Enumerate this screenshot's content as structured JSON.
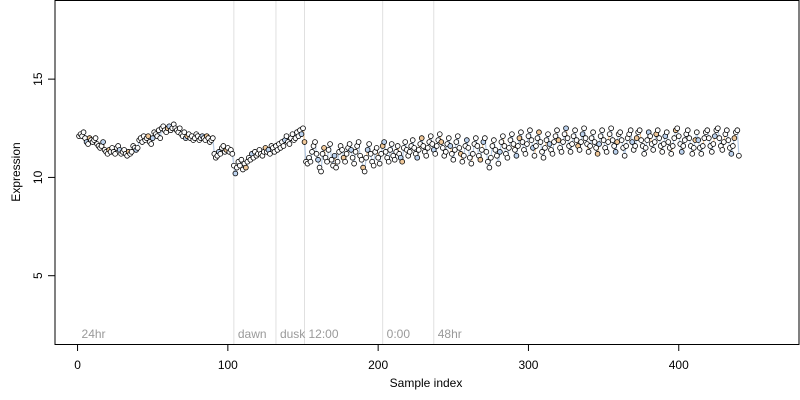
{
  "chart_data": {
    "type": "scatter",
    "xlabel": "Sample index",
    "ylabel": "Expression",
    "xlim": [
      -15,
      480
    ],
    "ylim": [
      1.5,
      19
    ],
    "x_ticks": [
      0,
      100,
      200,
      300,
      400
    ],
    "y_ticks": [
      5,
      10,
      15
    ],
    "grid": false,
    "legend": "none",
    "annotations": [
      {
        "label": "24hr",
        "x": 0
      },
      {
        "label": "dawn",
        "x": 104
      },
      {
        "label": "dusk",
        "x": 132
      },
      {
        "label": "12:00",
        "x": 151
      },
      {
        "label": "0:00",
        "x": 203
      },
      {
        "label": "48hr",
        "x": 237
      }
    ],
    "colors": {
      "marker_fill": "#ffffff",
      "marker_fill_alt_blue": "#bcd2ee",
      "marker_fill_alt_orange": "#f1c99a",
      "marker_edge": "#000000",
      "connector_line": "#b7cbe3",
      "connector_line_alt": "#f1c99a",
      "annotation_line": "#e0e0e0",
      "annotation_text": "#9a9a9a"
    },
    "series": [
      {
        "x_start": 1,
        "x_step": 1,
        "values": [
          12.1,
          12.2,
          12.1,
          12.3,
          12.0,
          11.8,
          11.7,
          12.0,
          11.9,
          11.8,
          11.9,
          12.0,
          11.7,
          11.6,
          11.5,
          11.6,
          11.8,
          11.4,
          11.3,
          11.2,
          11.4,
          11.3,
          11.5,
          11.3,
          11.2,
          11.5,
          11.6,
          11.4,
          11.2,
          11.3,
          11.4,
          11.2,
          11.1,
          11.3,
          11.2,
          11.3,
          11.6,
          11.5,
          11.4,
          11.5,
          11.9,
          12.0,
          11.8,
          12.1,
          11.9,
          12.0,
          12.1,
          11.8,
          11.7,
          12.0,
          12.3,
          12.2,
          12.1,
          12.4,
          12.0,
          12.5,
          12.6,
          12.4,
          12.3,
          12.5,
          12.6,
          12.4,
          12.5,
          12.7,
          12.5,
          12.4,
          12.3,
          12.5,
          12.2,
          12.1,
          12.3,
          12.0,
          12.1,
          12.2,
          12.0,
          12.1,
          11.9,
          12.0,
          12.2,
          12.1,
          11.9,
          12.0,
          12.1,
          12.0,
          11.9,
          12.1,
          12.0,
          11.8,
          11.9,
          12.0,
          11.2,
          11.0,
          11.1,
          11.3,
          11.2,
          11.5,
          11.6,
          11.3,
          11.4,
          11.5,
          11.3,
          11.4,
          11.2,
          10.6,
          10.2,
          10.5,
          10.8,
          10.6,
          10.9,
          10.4,
          10.7,
          10.5,
          10.8,
          11.0,
          10.9,
          11.2,
          11.0,
          11.3,
          11.1,
          11.2,
          11.4,
          11.2,
          11.1,
          11.3,
          11.5,
          11.3,
          11.4,
          11.2,
          11.6,
          11.5,
          11.3,
          11.6,
          11.4,
          11.7,
          11.5,
          11.8,
          11.6,
          11.9,
          12.1,
          11.8,
          11.7,
          12.0,
          12.2,
          11.9,
          12.0,
          12.3,
          12.1,
          12.4,
          12.2,
          12.5,
          11.8,
          10.8,
          10.7,
          11.0,
          10.8,
          11.3,
          11.6,
          11.8,
          11.2,
          10.9,
          10.5,
          10.3,
          11.2,
          11.5,
          11.0,
          10.8,
          11.4,
          11.7,
          10.9,
          10.6,
          11.1,
          10.5,
          10.8,
          11.3,
          11.6,
          11.4,
          11.0,
          10.8,
          11.2,
          11.5,
          11.7,
          11.4,
          11.0,
          10.7,
          11.3,
          11.6,
          11.8,
          11.1,
          10.9,
          10.5,
          10.3,
          11.0,
          11.4,
          11.7,
          11.2,
          10.8,
          10.6,
          11.3,
          11.5,
          11.0,
          10.7,
          11.2,
          11.6,
          11.8,
          11.3,
          11.0,
          10.8,
          11.4,
          11.7,
          11.1,
          10.9,
          11.3,
          11.6,
          11.2,
          11.0,
          10.8,
          11.5,
          11.8,
          11.4,
          11.1,
          11.3,
          11.6,
          11.9,
          11.5,
          11.2,
          11.0,
          11.4,
          11.7,
          12.0,
          11.6,
          11.3,
          11.1,
          11.5,
          11.8,
          12.1,
          11.7,
          11.4,
          11.2,
          11.6,
          11.9,
          12.2,
          11.8,
          11.5,
          11.1,
          11.3,
          11.7,
          12.0,
          11.6,
          11.2,
          10.9,
          11.4,
          11.8,
          12.1,
          11.5,
          11.2,
          10.8,
          11.1,
          11.6,
          11.9,
          11.5,
          11.0,
          10.7,
          11.2,
          11.7,
          12.0,
          11.6,
          11.1,
          10.9,
          11.4,
          11.8,
          12.0,
          11.3,
          10.8,
          10.5,
          11.0,
          11.6,
          11.9,
          11.4,
          11.1,
          10.7,
          11.3,
          11.8,
          12.1,
          11.6,
          11.2,
          11.0,
          11.5,
          11.9,
          12.2,
          11.7,
          11.4,
          11.1,
          11.6,
          12.0,
          12.3,
          11.8,
          11.4,
          11.2,
          11.7,
          12.1,
          12.4,
          11.9,
          11.5,
          11.1,
          11.6,
          12.0,
          12.3,
          11.8,
          11.3,
          11.0,
          11.5,
          11.9,
          12.2,
          11.7,
          11.4,
          11.2,
          11.8,
          12.1,
          12.4,
          11.9,
          11.5,
          11.3,
          11.8,
          12.2,
          12.5,
          12.0,
          11.6,
          11.3,
          11.7,
          12.1,
          12.4,
          11.9,
          11.6,
          11.4,
          11.8,
          12.2,
          12.5,
          12.0,
          11.7,
          11.3,
          11.6,
          12.0,
          12.3,
          11.8,
          11.5,
          11.2,
          11.7,
          12.1,
          12.4,
          11.9,
          11.5,
          11.3,
          11.8,
          12.2,
          12.5,
          11.9,
          11.6,
          11.3,
          11.8,
          12.2,
          12.3,
          11.9,
          11.5,
          11.1,
          11.6,
          12.0,
          12.2,
          12.4,
          11.8,
          11.4,
          11.6,
          12.0,
          12.3,
          12.4,
          11.9,
          11.6,
          11.2,
          11.5,
          11.9,
          12.3,
          12.1,
          11.7,
          11.4,
          11.8,
          12.2,
          12.4,
          12.0,
          11.6,
          11.3,
          11.7,
          12.1,
          12.3,
          11.8,
          11.5,
          11.2,
          11.6,
          12.0,
          12.4,
          12.5,
          12.1,
          11.7,
          11.3,
          11.6,
          11.9,
          12.2,
          12.4,
          12.0,
          11.6,
          11.2,
          11.5,
          11.9,
          12.3,
          11.9,
          11.5,
          11.2,
          11.6,
          12.0,
          12.3,
          12.4,
          12.0,
          11.6,
          11.3,
          11.7,
          12.1,
          12.4,
          12.5,
          12.0,
          11.6,
          11.4,
          11.8,
          12.2,
          12.4,
          11.9,
          11.5,
          11.2,
          11.6,
          12.0,
          12.3,
          12.4,
          11.1
        ]
      }
    ]
  }
}
